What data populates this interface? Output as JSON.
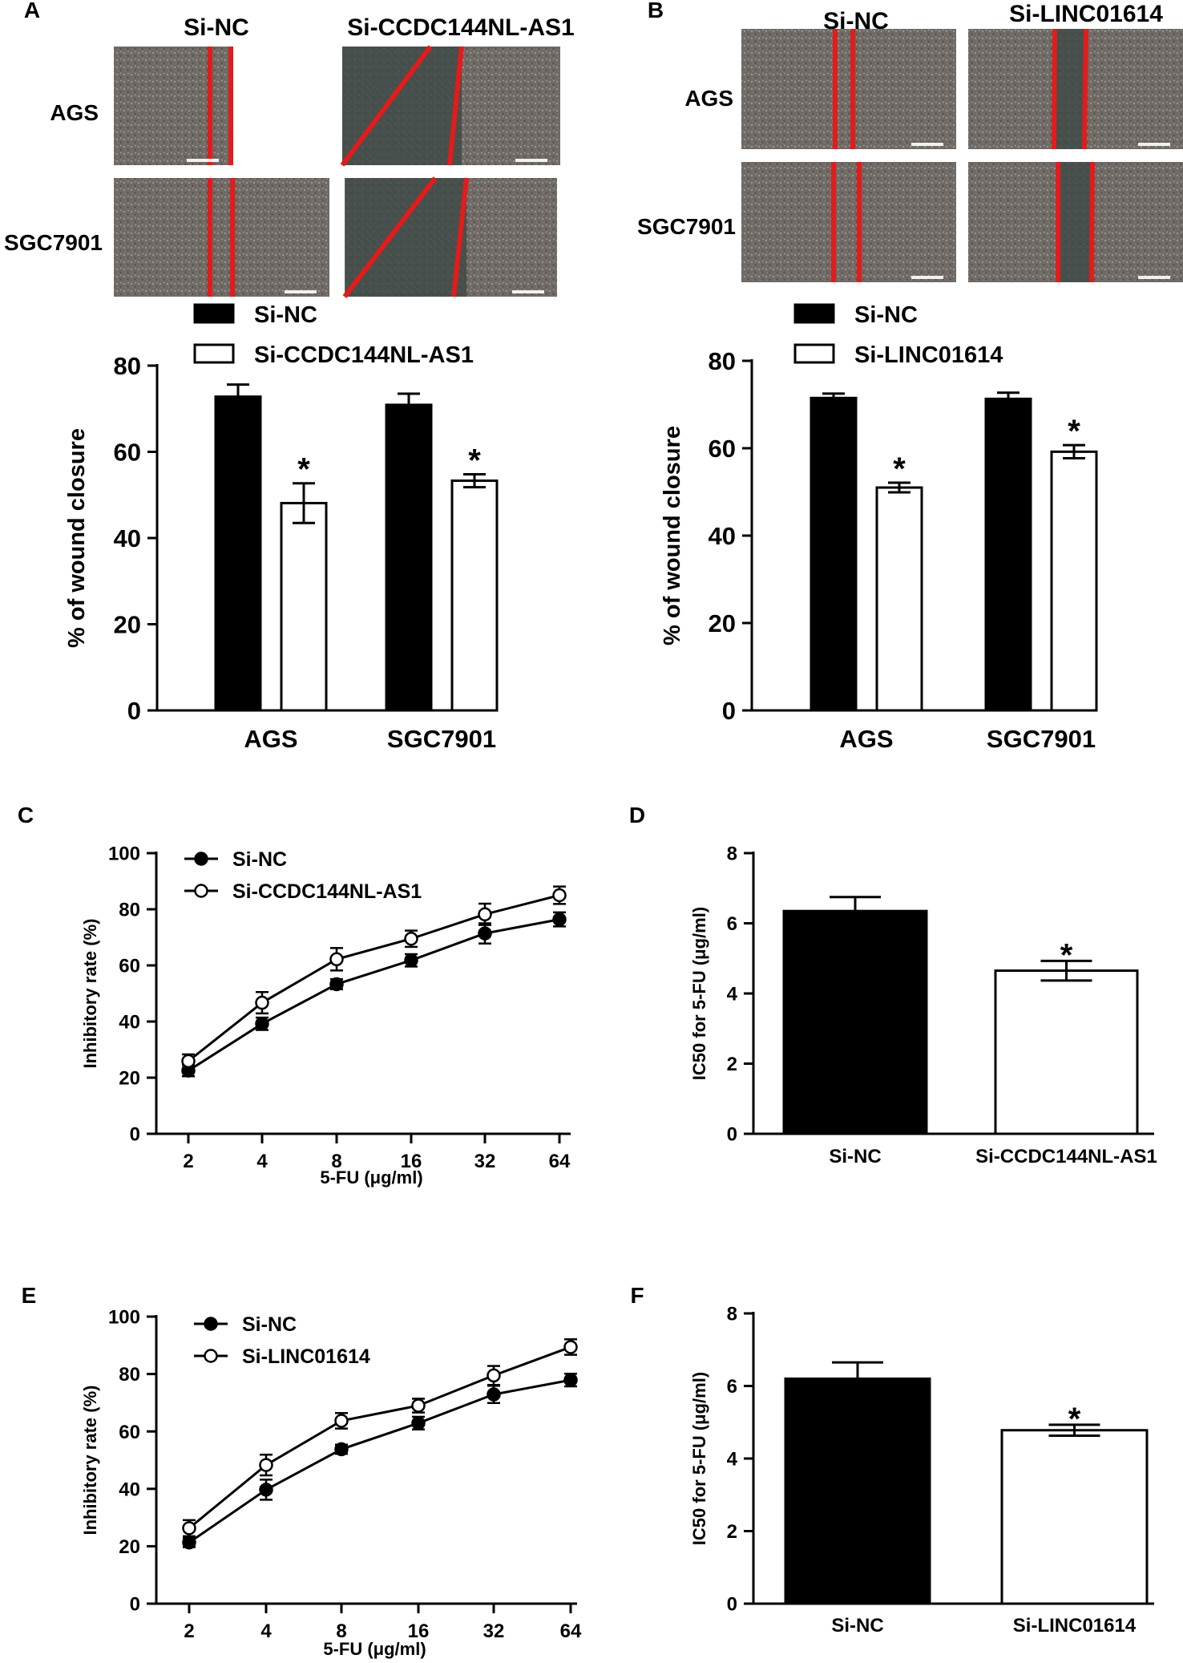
{
  "colors": {
    "ink": "#000000",
    "paper": "#ffffff",
    "scratch_line": "#e41b1b",
    "micrograph_base": "#6f6a66",
    "micrograph_gap": "#3f4a46"
  },
  "micrographs": [
    {
      "panel": "A",
      "columns": [
        "Si-NC",
        "Si-CCDC144NL-AS1"
      ],
      "rows": [
        "AGS",
        "SGC7901"
      ]
    },
    {
      "panel": "B",
      "columns": [
        "Si-NC",
        "Si-LINC01614"
      ],
      "rows": [
        "AGS",
        "SGC7901"
      ]
    }
  ],
  "chart_data": [
    {
      "panel": "A",
      "type": "bar",
      "categories": [
        "AGS",
        "SGC7901"
      ],
      "series": [
        {
          "name": "Si-NC",
          "fill": "black",
          "values": [
            72.8,
            70.9
          ],
          "errors": [
            2.8,
            2.6
          ],
          "significance": [
            "",
            ""
          ]
        },
        {
          "name": "Si-CCDC144NL-AS1",
          "fill": "white",
          "values": [
            48.1,
            53.3
          ],
          "errors": [
            4.6,
            1.5
          ],
          "significance": [
            "*",
            "*"
          ]
        }
      ],
      "ylabel": "% of wound closure",
      "xlabel": "",
      "ylim": [
        0,
        80
      ],
      "yticks": [
        0,
        20,
        40,
        60,
        80
      ],
      "legend": "top"
    },
    {
      "panel": "B",
      "type": "bar",
      "categories": [
        "AGS",
        "SGC7901"
      ],
      "series": [
        {
          "name": "Si-NC",
          "fill": "black",
          "values": [
            71.5,
            71.3
          ],
          "errors": [
            1.0,
            1.4
          ],
          "significance": [
            "",
            ""
          ]
        },
        {
          "name": "Si-LINC01614",
          "fill": "white",
          "values": [
            51.0,
            59.2
          ],
          "errors": [
            1.1,
            1.5
          ],
          "significance": [
            "*",
            "*"
          ]
        }
      ],
      "ylabel": "% of wound closure",
      "xlabel": "",
      "ylim": [
        0,
        80
      ],
      "yticks": [
        0,
        20,
        40,
        60,
        80
      ],
      "legend": "top"
    },
    {
      "panel": "C",
      "type": "line",
      "x": [
        "2",
        "4",
        "8",
        "16",
        "32",
        "64"
      ],
      "series": [
        {
          "name": "Si-NC",
          "marker": "filled",
          "values": [
            22.5,
            39.2,
            53.3,
            61.8,
            71.4,
            76.4
          ],
          "errors": [
            2.0,
            2.2,
            1.8,
            2.2,
            3.6,
            2.5
          ]
        },
        {
          "name": "Si-CCDC144NL-AS1",
          "marker": "open",
          "values": [
            25.9,
            46.7,
            62.2,
            69.5,
            78.2,
            85.0
          ],
          "errors": [
            2.4,
            3.8,
            4.0,
            2.9,
            3.8,
            3.1
          ]
        }
      ],
      "xlabel": "5-FU (μg/ml)",
      "ylabel": "Inhibitory rate (%)",
      "ylim": [
        0,
        100
      ],
      "yticks": [
        0,
        20,
        40,
        60,
        80,
        100
      ],
      "legend": "top-left"
    },
    {
      "panel": "D",
      "type": "bar",
      "categories": [
        "Si-NC",
        "Si-CCDC144NL-AS1"
      ],
      "values": [
        6.35,
        4.65
      ],
      "errors": [
        0.4,
        0.28
      ],
      "fills": [
        "black",
        "white"
      ],
      "significance": [
        "",
        "*"
      ],
      "ylabel": "IC50 for 5-FU (μg/ml)",
      "xlabel": "",
      "ylim": [
        0,
        8
      ],
      "yticks": [
        0,
        2,
        4,
        6,
        8
      ]
    },
    {
      "panel": "E",
      "type": "line",
      "x": [
        "2",
        "4",
        "8",
        "16",
        "32",
        "64"
      ],
      "series": [
        {
          "name": "Si-NC",
          "marker": "filled",
          "values": [
            21.3,
            39.7,
            53.8,
            62.9,
            72.9,
            77.9
          ],
          "errors": [
            1.6,
            3.5,
            1.6,
            2.2,
            3.0,
            2.2
          ]
        },
        {
          "name": "Si-LINC01614",
          "marker": "open",
          "values": [
            26.3,
            48.3,
            63.7,
            69.0,
            79.5,
            89.4
          ],
          "errors": [
            2.8,
            3.6,
            2.7,
            2.4,
            3.3,
            2.7
          ]
        }
      ],
      "xlabel": "5-FU (μg/ml)",
      "ylabel": "Inhibitory rate (%)",
      "ylim": [
        0,
        100
      ],
      "yticks": [
        0,
        20,
        40,
        60,
        80,
        100
      ],
      "legend": "top-left"
    },
    {
      "panel": "F",
      "type": "bar",
      "categories": [
        "Si-NC",
        "Si-LINC01614"
      ],
      "values": [
        6.2,
        4.78
      ],
      "errors": [
        0.45,
        0.15
      ],
      "fills": [
        "black",
        "white"
      ],
      "significance": [
        "",
        "*"
      ],
      "ylabel": "IC50 for 5-FU (μg/ml)",
      "xlabel": "",
      "ylim": [
        0,
        8
      ],
      "yticks": [
        0,
        2,
        4,
        6,
        8
      ]
    }
  ]
}
